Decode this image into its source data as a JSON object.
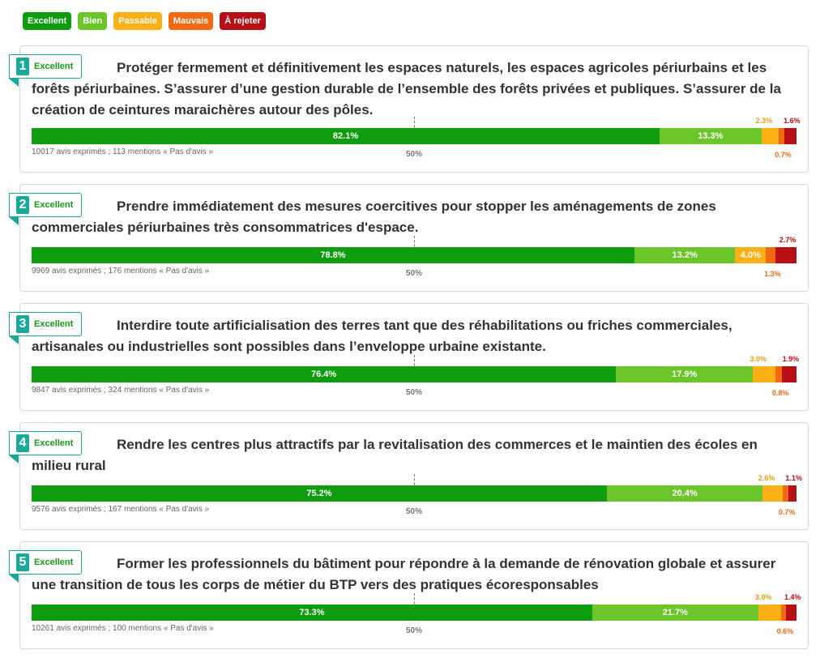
{
  "legend": [
    {
      "label": "Excellent",
      "color": "#0f9d0f"
    },
    {
      "label": "Bien",
      "color": "#6cc52a"
    },
    {
      "label": "Passable",
      "color": "#fbb015"
    },
    {
      "label": "Mauvais",
      "color": "#f26914"
    },
    {
      "label": "À rejeter",
      "color": "#b70f16"
    }
  ],
  "median_label": "50%",
  "proposals": [
    {
      "rank": "1",
      "grade": "Excellent",
      "title": "Protéger fermement et définitivement les espaces naturels, les espaces agricoles périurbains et les forêts périurbaines. S’assurer d’une gestion durable de l’ensemble des forêts privées et publiques. S’assurer de la création de ceintures maraichères autour des pôles.",
      "votes": "10017 avis exprimés ; 113 mentions « Pas d'avis »"
    },
    {
      "rank": "2",
      "grade": "Excellent",
      "title": "Prendre immédiatement des mesures coercitives pour stopper les aménagements de zones commerciales périurbaines très consommatrices d'espace.",
      "votes": "9969 avis exprimés ; 176 mentions « Pas d'avis »"
    },
    {
      "rank": "3",
      "grade": "Excellent",
      "title": "Interdire toute artificialisation des terres tant que des réhabilitations ou friches commerciales, artisanales ou industrielles sont possibles dans l’enveloppe urbaine existante.",
      "votes": "9847 avis exprimés ; 324 mentions « Pas d'avis »"
    },
    {
      "rank": "4",
      "grade": "Excellent",
      "title": "Rendre les centres plus attractifs par la revitalisation des commerces et le maintien des écoles en milieu rural",
      "votes": "9576 avis exprimés ; 167 mentions « Pas d'avis »"
    },
    {
      "rank": "5",
      "grade": "Excellent",
      "title": "Former les professionnels du bâtiment pour répondre à la demande de rénovation globale et assurer une transition de tous les corps de métier du BTP vers des pratiques écoresponsables",
      "votes": "10261 avis exprimés ; 100 mentions « Pas d'avis »"
    }
  ],
  "chart_data": {
    "type": "bar",
    "orientation": "horizontal-stacked-100",
    "series_names": [
      "Excellent",
      "Bien",
      "Passable",
      "Mauvais",
      "À rejeter"
    ],
    "colors": [
      "#0f9d0f",
      "#6cc52a",
      "#fbb015",
      "#f26914",
      "#b70f16"
    ],
    "median_marker": 50,
    "rows": [
      {
        "values": [
          82.1,
          13.3,
          2.3,
          0.7,
          1.6
        ],
        "labels": [
          "82.1%",
          "13.3%",
          "2.3%",
          "0.7%",
          "1.6%"
        ]
      },
      {
        "values": [
          78.8,
          13.2,
          4.0,
          1.3,
          2.7
        ],
        "labels": [
          "78.8%",
          "13.2%",
          "4.0%",
          "1.3%",
          "2.7%"
        ]
      },
      {
        "values": [
          76.4,
          17.9,
          3.0,
          0.8,
          1.9
        ],
        "labels": [
          "76.4%",
          "17.9%",
          "3.0%",
          "0.8%",
          "1.9%"
        ]
      },
      {
        "values": [
          75.2,
          20.4,
          2.6,
          0.7,
          1.1
        ],
        "labels": [
          "75.2%",
          "20.4%",
          "2.6%",
          "0.7%",
          "1.1%"
        ]
      },
      {
        "values": [
          73.3,
          21.7,
          3.0,
          0.6,
          1.4
        ],
        "labels": [
          "73.3%",
          "21.7%",
          "3.0%",
          "0.6%",
          "1.4%"
        ]
      }
    ]
  }
}
